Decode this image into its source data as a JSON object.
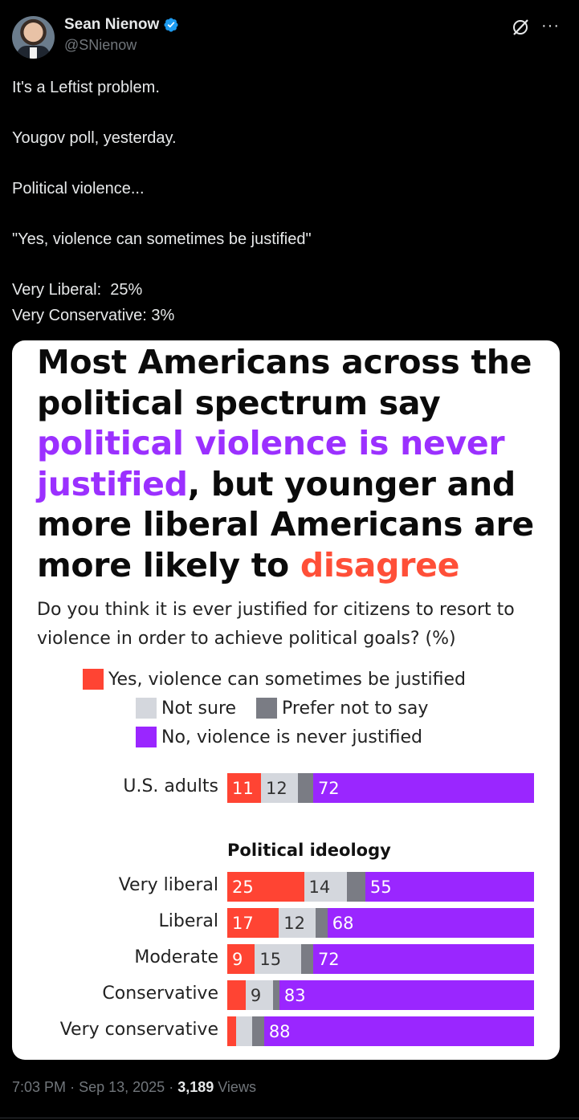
{
  "author": {
    "name": "Sean Nienow",
    "handle": "@SNienow",
    "verified": true
  },
  "icons": {
    "grok": "grok-icon",
    "more": "more-icon",
    "verified": "verified-badge-icon"
  },
  "tweet": {
    "lines": [
      "It's a Leftist problem.",
      "",
      "Yougov poll, yesterday.",
      "",
      "Political violence...",
      "",
      "\"Yes, violence can sometimes be justified\"",
      "",
      "Very Liberal:  25%",
      "Very Conservative: 3%"
    ]
  },
  "card": {
    "headline_parts": [
      {
        "text": "Most Americans across the political spectrum say ",
        "style": "black"
      },
      {
        "text": "political violence is never justified",
        "style": "purple"
      },
      {
        "text": ", but younger and more liberal Americans are more likely to ",
        "style": "black"
      },
      {
        "text": "disagree",
        "style": "red"
      }
    ],
    "question": "Do you think it is ever justified for citizens to resort to violence in order to achieve political goals? (%)",
    "legend": {
      "yes": "Yes, violence can sometimes be justified",
      "not_sure": "Not sure",
      "prefer_not": "Prefer not to say",
      "no": "No, violence is never justified"
    },
    "section_title": "Political ideology"
  },
  "colors": {
    "yes": "#ff4433",
    "not_sure": "#d4d7dd",
    "prefer_not": "#7a7c84",
    "no": "#9a26ff",
    "accent_blue": "#1d9bf0"
  },
  "chart_data": {
    "type": "bar",
    "orientation": "horizontal-stacked",
    "series_keys": [
      "yes",
      "not_sure",
      "prefer_not",
      "no"
    ],
    "rows": [
      {
        "label": "U.S. adults",
        "values": [
          11,
          12,
          5,
          72
        ],
        "labels": [
          "11",
          "12",
          "",
          "72"
        ],
        "group": "overall"
      },
      {
        "label": "Very liberal",
        "values": [
          25,
          14,
          6,
          55
        ],
        "labels": [
          "25",
          "14",
          "",
          "55"
        ],
        "group": "ideology"
      },
      {
        "label": "Liberal",
        "values": [
          17,
          12,
          4,
          68
        ],
        "labels": [
          "17",
          "12",
          "",
          "68"
        ],
        "group": "ideology"
      },
      {
        "label": "Moderate",
        "values": [
          9,
          15,
          4,
          72
        ],
        "labels": [
          "9",
          "15",
          "",
          "72"
        ],
        "group": "ideology"
      },
      {
        "label": "Conservative",
        "values": [
          6,
          9,
          2,
          83
        ],
        "labels": [
          "",
          "9",
          "",
          "83"
        ],
        "group": "ideology"
      },
      {
        "label": "Very conservative",
        "values": [
          3,
          5,
          4,
          88
        ],
        "labels": [
          "",
          "",
          "",
          "88"
        ],
        "group": "ideology"
      }
    ],
    "xlim": [
      0,
      100
    ]
  },
  "footer": {
    "time": "7:03 PM",
    "date": "Sep 13, 2025",
    "views_count": "3,189",
    "views_label": "Views"
  }
}
